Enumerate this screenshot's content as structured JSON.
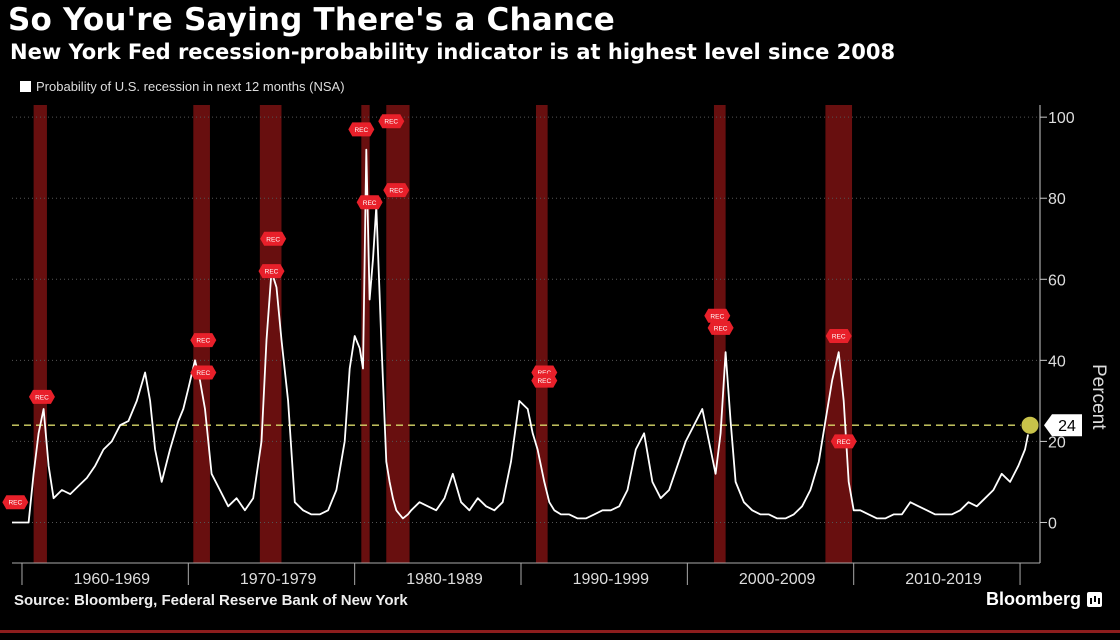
{
  "header": {
    "title": "So You're Saying There's a Chance",
    "subtitle": "New York Fed recession-probability indicator is at highest level since 2008"
  },
  "legend": {
    "label": "Probability of U.S. recession in next 12 months (NSA)"
  },
  "footer": {
    "source": "Source: Bloomberg, Federal Reserve Bank of New York",
    "brand": "Bloomberg"
  },
  "colors": {
    "line": "#ffffff",
    "recession": "#7a1212",
    "marker": "#e8202a",
    "reference": "#d8d86a",
    "current": "#c8c24a"
  },
  "chart_data": {
    "type": "line",
    "ylabel": "Percent",
    "ylim": [
      -10,
      103
    ],
    "yticks": [
      0,
      20,
      40,
      60,
      80,
      100
    ],
    "xlim": [
      1959.0,
      2020.8
    ],
    "decade_labels": [
      "1960-1969",
      "1970-1979",
      "1980-1989",
      "1990-1999",
      "2000-2009",
      "2010-2019"
    ],
    "decade_label_x": [
      1965,
      1975,
      1985,
      1995,
      2005,
      2015
    ],
    "reference_line": {
      "value": 24,
      "label": "24"
    },
    "recessions": [
      [
        1960.3,
        1961.1
      ],
      [
        1969.9,
        1970.9
      ],
      [
        1973.9,
        1975.2
      ],
      [
        1980.0,
        1980.5
      ],
      [
        1981.5,
        1982.9
      ],
      [
        1990.5,
        1991.2
      ],
      [
        2001.2,
        2001.9
      ],
      [
        2007.9,
        2009.5
      ]
    ],
    "rec_marker_label": "REC",
    "rec_markers": [
      [
        1959.2,
        5
      ],
      [
        1960.8,
        31
      ],
      [
        1970.5,
        45
      ],
      [
        1970.5,
        37
      ],
      [
        1974.7,
        70
      ],
      [
        1974.6,
        62
      ],
      [
        1980.0,
        97
      ],
      [
        1980.5,
        79
      ],
      [
        1981.8,
        99
      ],
      [
        1982.1,
        82
      ],
      [
        1991.0,
        37
      ],
      [
        1991.0,
        35
      ],
      [
        2001.4,
        51
      ],
      [
        2001.6,
        48
      ],
      [
        2008.7,
        46
      ],
      [
        2009.0,
        20
      ]
    ],
    "series": [
      {
        "x": [
          1959.0,
          1959.5,
          1960.0,
          1960.3,
          1960.6,
          1960.9,
          1961.2,
          1961.5,
          1962.0,
          1962.5,
          1963.0,
          1963.5,
          1964.0,
          1964.5,
          1965.0,
          1965.5,
          1966.0,
          1966.5,
          1967.0,
          1967.3,
          1967.6,
          1968.0,
          1968.5,
          1969.0,
          1969.3,
          1969.6,
          1970.0,
          1970.3,
          1970.6,
          1971.0,
          1971.5,
          1972.0,
          1972.5,
          1973.0,
          1973.5,
          1974.0,
          1974.3,
          1974.6,
          1974.9,
          1975.2,
          1975.6,
          1976.0,
          1976.5,
          1977.0,
          1977.5,
          1978.0,
          1978.5,
          1979.0,
          1979.3,
          1979.6,
          1979.9,
          1980.1,
          1980.3,
          1980.5,
          1980.7,
          1980.9,
          1981.2,
          1981.5,
          1981.7,
          1981.9,
          1982.1,
          1982.3,
          1982.5,
          1982.8,
          1983.0,
          1983.5,
          1984.0,
          1984.5,
          1985.0,
          1985.5,
          1986.0,
          1986.5,
          1987.0,
          1987.5,
          1988.0,
          1988.5,
          1989.0,
          1989.5,
          1990.0,
          1990.3,
          1990.6,
          1991.0,
          1991.3,
          1991.6,
          1992.0,
          1992.5,
          1993.0,
          1993.5,
          1994.0,
          1994.5,
          1995.0,
          1995.5,
          1996.0,
          1996.5,
          1997.0,
          1997.5,
          1998.0,
          1998.5,
          1999.0,
          1999.5,
          2000.0,
          2000.5,
          2001.0,
          2001.3,
          2001.6,
          2001.9,
          2002.2,
          2002.5,
          2003.0,
          2003.5,
          2004.0,
          2004.5,
          2005.0,
          2005.5,
          2006.0,
          2006.5,
          2007.0,
          2007.5,
          2007.9,
          2008.3,
          2008.7,
          2009.0,
          2009.3,
          2009.6,
          2010.0,
          2010.5,
          2011.0,
          2011.5,
          2012.0,
          2012.5,
          2013.0,
          2013.5,
          2014.0,
          2014.5,
          2015.0,
          2015.5,
          2016.0,
          2016.5,
          2017.0,
          2017.5,
          2018.0,
          2018.5,
          2019.0,
          2019.5,
          2019.9,
          2020.2
        ],
        "values": [
          0,
          0,
          0,
          12,
          22,
          28,
          14,
          6,
          8,
          7,
          9,
          11,
          14,
          18,
          20,
          24,
          25,
          30,
          37,
          30,
          18,
          10,
          18,
          25,
          28,
          33,
          40,
          35,
          28,
          12,
          8,
          4,
          6,
          3,
          6,
          20,
          45,
          62,
          58,
          45,
          30,
          5,
          3,
          2,
          2,
          3,
          8,
          20,
          38,
          46,
          43,
          38,
          92,
          55,
          65,
          78,
          45,
          15,
          10,
          6,
          3,
          2,
          1,
          2,
          3,
          5,
          4,
          3,
          6,
          12,
          5,
          3,
          6,
          4,
          3,
          5,
          15,
          30,
          28,
          22,
          18,
          10,
          5,
          3,
          2,
          2,
          1,
          1,
          2,
          3,
          3,
          4,
          8,
          18,
          22,
          10,
          6,
          8,
          14,
          20,
          24,
          28,
          18,
          12,
          22,
          42,
          25,
          10,
          5,
          3,
          2,
          2,
          1,
          1,
          2,
          4,
          8,
          15,
          25,
          35,
          42,
          30,
          10,
          3,
          3,
          2,
          1,
          1,
          2,
          2,
          5,
          4,
          3,
          2,
          2,
          2,
          3,
          5,
          4,
          6,
          8,
          12,
          10,
          14,
          18,
          24
        ]
      }
    ]
  }
}
